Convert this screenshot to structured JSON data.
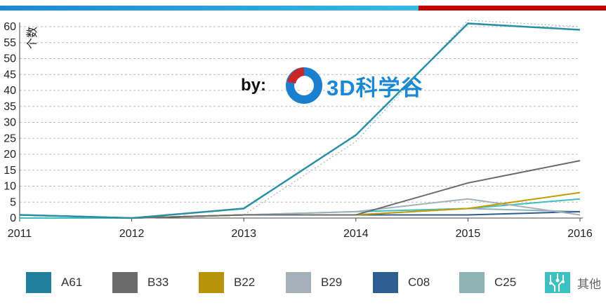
{
  "chart_data": {
    "type": "line",
    "ylabel": "个数",
    "x": [
      "2011",
      "2012",
      "2013",
      "2014",
      "2015",
      "2016"
    ],
    "ylim": [
      0,
      60
    ],
    "yticks": [
      0,
      5,
      10,
      15,
      20,
      25,
      30,
      35,
      40,
      45,
      50,
      55,
      60
    ],
    "grid": true,
    "legend_position": "bottom",
    "series": [
      {
        "name": "A61",
        "color": "#2a8fa5",
        "values": [
          1,
          0,
          3,
          26,
          61,
          59
        ]
      },
      {
        "name": "B33",
        "color": "#6b6b6b",
        "values": [
          1,
          0,
          1,
          1,
          11,
          18
        ]
      },
      {
        "name": "B22",
        "color": "#c49a00",
        "values": [
          1,
          0,
          1,
          1,
          3,
          8
        ]
      },
      {
        "name": "B29",
        "color": "#a5b0b8",
        "values": [
          1,
          0,
          1,
          2,
          6,
          1
        ]
      },
      {
        "name": "C08",
        "color": "#2f5f92",
        "values": [
          1,
          0,
          1,
          1,
          1,
          2
        ]
      },
      {
        "name": "C25",
        "color": "#8fb3b5",
        "values": [
          1,
          0,
          1,
          1,
          3,
          2
        ]
      },
      {
        "name": "其他",
        "color": "#3cc0c0",
        "values": [
          0,
          0,
          1,
          2,
          3,
          6
        ]
      }
    ],
    "trend": {
      "color": "#9ab8c4",
      "values": [
        1,
        0,
        1,
        24,
        62,
        60
      ]
    }
  },
  "watermark": {
    "by": "by:",
    "brand": "3D科学谷"
  },
  "legend_colors": {
    "A61": "#1f7f9c",
    "B33": "#6b6b6b",
    "B22": "#b8920a",
    "B29": "#a5b0b8",
    "C08": "#2f5f92",
    "C25": "#8fb3b5",
    "其他": "#3cc0c0"
  }
}
